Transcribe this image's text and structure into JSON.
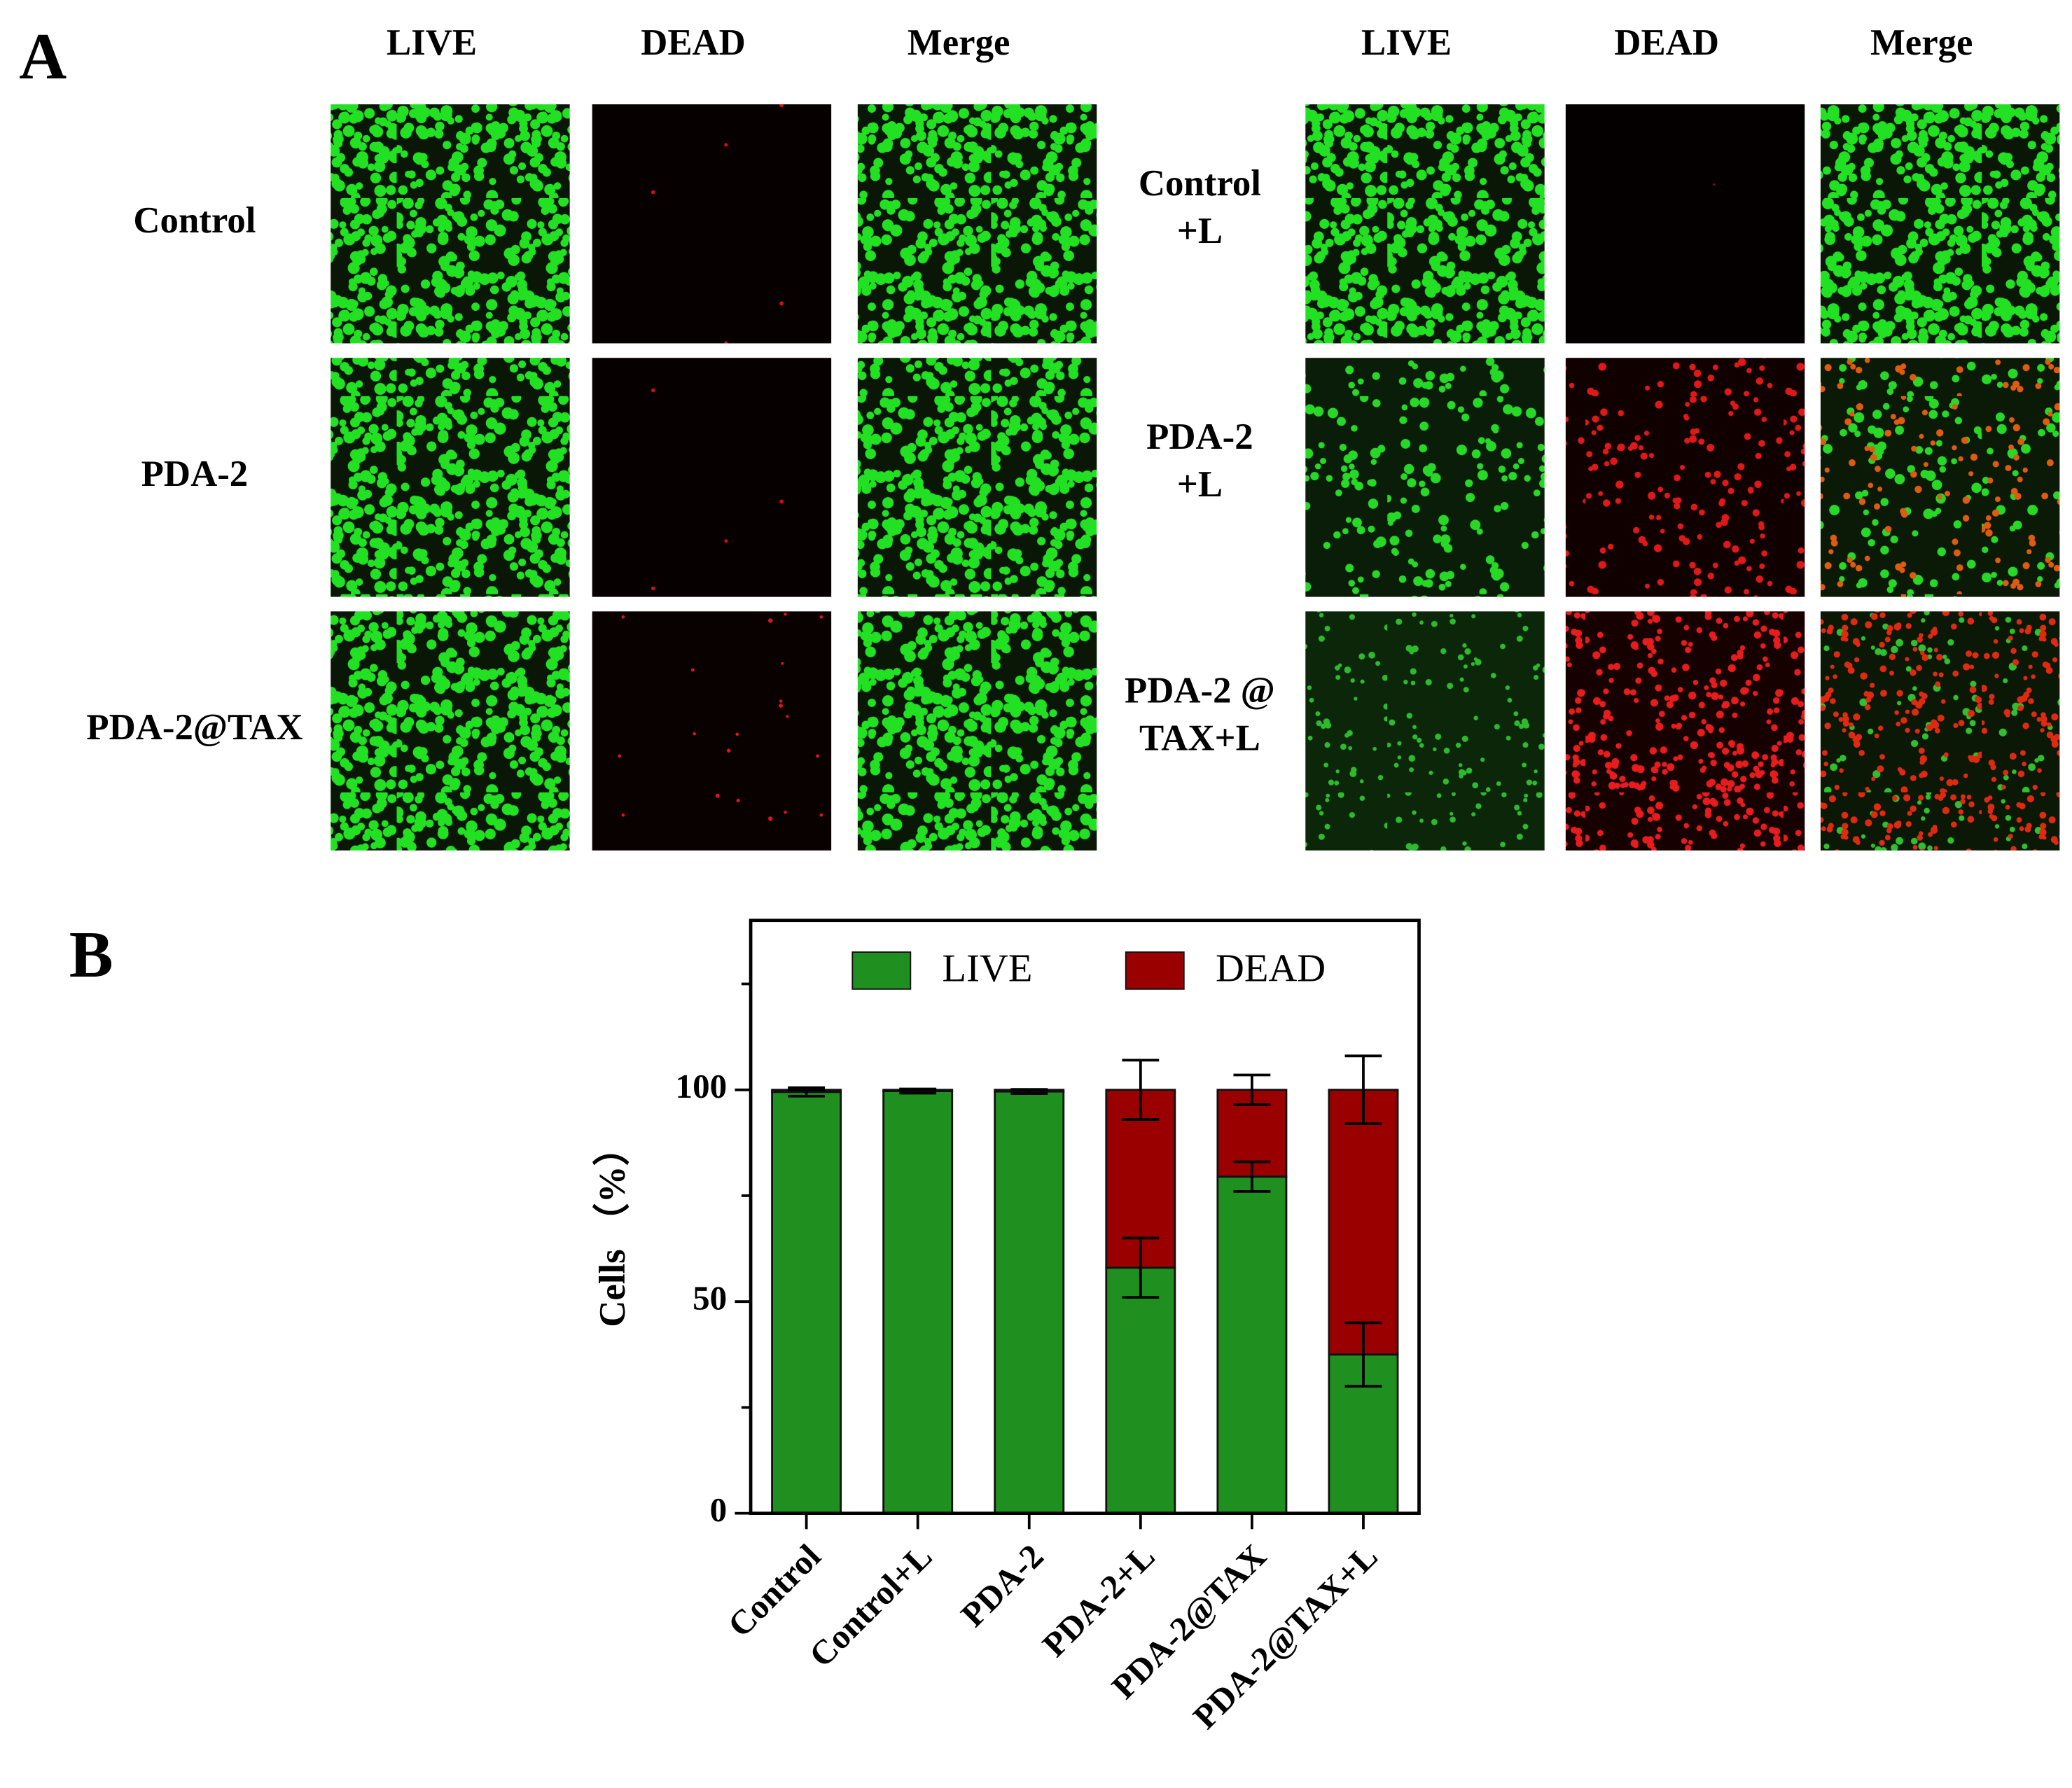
{
  "panel_a": {
    "label": "A",
    "column_headers": [
      "LIVE",
      "DEAD",
      "Merge",
      "LIVE",
      "DEAD",
      "Merge"
    ],
    "row_labels_left": [
      [
        "Control"
      ],
      [
        "PDA-2"
      ],
      [
        "PDA-2@TAX"
      ]
    ],
    "row_labels_right": [
      [
        "Control",
        "+L"
      ],
      [
        "PDA-2",
        "+L"
      ],
      [
        "PDA-2 @",
        "TAX+L"
      ]
    ]
  },
  "panel_b": {
    "label": "B"
  },
  "chart_data": {
    "type": "stacked_bar",
    "ylabel": "Cells （%）",
    "categories": [
      "Control",
      "Control+L",
      "PDA-2",
      "PDA-2+L",
      "PDA-2@TAX",
      "PDA-2@TAX+L"
    ],
    "series": [
      {
        "name": "LIVE",
        "color": "#1f8f1f",
        "values": [
          99.5,
          99.7,
          99.6,
          58,
          79.5,
          37.5
        ],
        "errors": [
          1,
          0.5,
          0.5,
          7,
          3.5,
          7.5
        ]
      },
      {
        "name": "DEAD",
        "color": "#9b0000",
        "values": [
          0.5,
          0.3,
          0.4,
          42,
          20.5,
          62.5
        ],
        "errors": [
          0,
          0,
          0,
          7,
          3.5,
          8
        ]
      }
    ],
    "ylim": [
      0,
      140
    ],
    "yticks": [
      0,
      50,
      100
    ],
    "yminor_ticks": [
      25,
      75,
      125
    ],
    "legend": "top"
  }
}
